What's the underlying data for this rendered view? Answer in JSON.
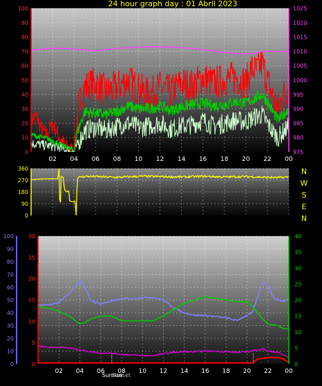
{
  "title": "24 hour graph day : 01 Abril 2023",
  "colors": {
    "background": "#000000",
    "title_yellow": "#ffff00",
    "wind_red": "#ff0000",
    "wind_green": "#00cc00",
    "wind_lightgreen": "#ccffcc",
    "pressure_magenta": "#ff44ff",
    "direction_yellow": "#ffff00",
    "humidity_blue": "#8080ff",
    "temp_green": "#00cc00",
    "dew_magenta": "#cc00cc",
    "rain_red": "#ff0000",
    "right_axis_green": "#00cc00",
    "left_axis_red": "#ff0000",
    "left_axis_blue": "#6666ff"
  },
  "x_ticks": [
    "02",
    "04",
    "06",
    "08",
    "10",
    "12",
    "14",
    "16",
    "18",
    "20",
    "22",
    "00"
  ],
  "wind_panel": {
    "type": "line",
    "left_axis": {
      "ticks": [
        "100",
        "90",
        "80",
        "70",
        "60",
        "50",
        "40",
        "30",
        "20",
        "10",
        "0"
      ],
      "range": [
        0,
        100
      ]
    },
    "right_axis": {
      "ticks": [
        "1025",
        "1020",
        "1015",
        "1010",
        "1005",
        "1000",
        "995",
        "990",
        "985",
        "980",
        "975"
      ],
      "range": [
        975,
        1025
      ]
    },
    "gust_profile": [
      [
        0,
        22
      ],
      [
        0.5,
        25
      ],
      [
        1,
        15
      ],
      [
        1.5,
        12
      ],
      [
        2,
        20
      ],
      [
        2.5,
        12
      ],
      [
        3,
        6
      ],
      [
        3.5,
        2
      ],
      [
        4,
        1
      ],
      [
        4.3,
        25
      ],
      [
        4.7,
        40
      ],
      [
        5,
        45
      ],
      [
        6,
        48
      ],
      [
        7,
        42
      ],
      [
        8,
        45
      ],
      [
        9,
        50
      ],
      [
        10,
        44
      ],
      [
        11,
        40
      ],
      [
        12,
        45
      ],
      [
        13,
        42
      ],
      [
        14,
        48
      ],
      [
        15,
        46
      ],
      [
        16,
        52
      ],
      [
        17,
        48
      ],
      [
        18,
        50
      ],
      [
        19,
        52
      ],
      [
        20,
        48
      ],
      [
        20.5,
        58
      ],
      [
        21,
        56
      ],
      [
        21.5,
        62
      ],
      [
        22,
        50
      ],
      [
        22.5,
        38
      ],
      [
        23,
        30
      ],
      [
        23.5,
        40
      ],
      [
        24,
        45
      ]
    ],
    "avg_profile": [
      [
        0,
        12
      ],
      [
        1,
        10
      ],
      [
        2,
        8
      ],
      [
        3,
        4
      ],
      [
        4,
        1
      ],
      [
        4.3,
        14
      ],
      [
        5,
        28
      ],
      [
        6,
        27
      ],
      [
        7,
        26
      ],
      [
        8,
        28
      ],
      [
        9,
        32
      ],
      [
        10,
        30
      ],
      [
        11,
        30
      ],
      [
        12,
        32
      ],
      [
        13,
        29
      ],
      [
        14,
        31
      ],
      [
        15,
        33
      ],
      [
        16,
        34
      ],
      [
        17,
        32
      ],
      [
        18,
        33
      ],
      [
        19,
        35
      ],
      [
        20,
        34
      ],
      [
        21,
        38
      ],
      [
        21.5,
        40
      ],
      [
        22,
        35
      ],
      [
        22.5,
        28
      ],
      [
        23,
        22
      ],
      [
        24,
        30
      ]
    ],
    "min_profile": [
      [
        0,
        6
      ],
      [
        1,
        5
      ],
      [
        2,
        4
      ],
      [
        3,
        2
      ],
      [
        4,
        0
      ],
      [
        4.3,
        5
      ],
      [
        5,
        15
      ],
      [
        6,
        17
      ],
      [
        7,
        15
      ],
      [
        8,
        18
      ],
      [
        9,
        20
      ],
      [
        10,
        17
      ],
      [
        11,
        18
      ],
      [
        12,
        20
      ],
      [
        13,
        16
      ],
      [
        14,
        18
      ],
      [
        15,
        19
      ],
      [
        16,
        22
      ],
      [
        17,
        18
      ],
      [
        18,
        20
      ],
      [
        19,
        22
      ],
      [
        20,
        21
      ],
      [
        21,
        25
      ],
      [
        21.5,
        26
      ],
      [
        22,
        20
      ],
      [
        22.5,
        14
      ],
      [
        23,
        10
      ],
      [
        24,
        18
      ]
    ],
    "pressure_profile": [
      [
        0,
        1010.5
      ],
      [
        1,
        1010.8
      ],
      [
        2,
        1011
      ],
      [
        3,
        1011
      ],
      [
        4,
        1010.8
      ],
      [
        5,
        1010.5
      ],
      [
        6,
        1010.2
      ],
      [
        7,
        1010.6
      ],
      [
        8,
        1011
      ],
      [
        9,
        1011.3
      ],
      [
        10,
        1011.5
      ],
      [
        11,
        1011.6
      ],
      [
        12,
        1011.6
      ],
      [
        13,
        1011.5
      ],
      [
        14,
        1011.3
      ],
      [
        15,
        1011
      ],
      [
        16,
        1010.6
      ],
      [
        17,
        1010.1
      ],
      [
        18,
        1009.6
      ],
      [
        19,
        1009.3
      ],
      [
        20,
        1009.1
      ],
      [
        20.5,
        1009.2
      ],
      [
        21,
        1009.5
      ],
      [
        21.5,
        1010
      ],
      [
        22,
        1010
      ],
      [
        23,
        1010
      ],
      [
        24,
        1009.9
      ]
    ]
  },
  "direction_panel": {
    "type": "line",
    "left_axis": {
      "ticks": [
        "360",
        "270",
        "180",
        "90",
        "0"
      ],
      "range": [
        0,
        360
      ]
    },
    "compass": [
      "N",
      "W",
      "S",
      "E",
      "N"
    ],
    "direction_profile": [
      [
        0,
        275
      ],
      [
        1,
        280
      ],
      [
        2,
        282
      ],
      [
        2.5,
        280
      ],
      [
        2.6,
        360
      ],
      [
        2.7,
        0
      ],
      [
        2.8,
        300
      ],
      [
        3.0,
        290
      ],
      [
        3.1,
        200
      ],
      [
        3.3,
        180
      ],
      [
        3.5,
        190
      ],
      [
        3.6,
        110
      ],
      [
        3.9,
        105
      ],
      [
        4.1,
        110
      ],
      [
        4.2,
        0
      ],
      [
        4.3,
        290
      ],
      [
        5,
        300
      ],
      [
        6,
        298
      ],
      [
        8,
        292
      ],
      [
        10,
        300
      ],
      [
        12,
        298
      ],
      [
        14,
        295
      ],
      [
        16,
        300
      ],
      [
        18,
        295
      ],
      [
        20,
        298
      ],
      [
        22,
        292
      ],
      [
        23,
        290
      ],
      [
        24,
        295
      ]
    ]
  },
  "temp_panel": {
    "type": "line",
    "left_axis_humidity": {
      "ticks": [
        "100",
        "90",
        "80",
        "70",
        "60",
        "50",
        "40",
        "30",
        "20",
        "10",
        "0"
      ],
      "range": [
        0,
        100
      ]
    },
    "left_axis_temp": {
      "ticks": [
        "30",
        "25",
        "20",
        "15",
        "10",
        "5",
        "0"
      ],
      "range": [
        0,
        30
      ]
    },
    "right_axis": {
      "ticks": [
        "40",
        "35",
        "30",
        "25",
        "20",
        "15",
        "10",
        "5",
        "0"
      ],
      "range": [
        0,
        40
      ]
    },
    "sun_labels": {
      "rise": "Sunrise",
      "set": "Sunset"
    },
    "humidity_profile": [
      [
        0,
        46
      ],
      [
        1,
        46
      ],
      [
        2,
        48
      ],
      [
        2.5,
        52
      ],
      [
        3,
        55
      ],
      [
        3.5,
        60
      ],
      [
        4,
        65
      ],
      [
        4.5,
        60
      ],
      [
        5,
        50
      ],
      [
        5.5,
        48
      ],
      [
        6,
        47
      ],
      [
        7,
        49
      ],
      [
        8,
        51
      ],
      [
        9,
        51
      ],
      [
        10,
        52
      ],
      [
        11,
        52
      ],
      [
        12,
        50
      ],
      [
        13,
        44
      ],
      [
        14,
        40
      ],
      [
        15,
        38
      ],
      [
        16,
        38
      ],
      [
        17,
        37
      ],
      [
        18,
        36
      ],
      [
        19,
        34
      ],
      [
        20,
        38
      ],
      [
        20.5,
        40
      ],
      [
        21,
        52
      ],
      [
        21.5,
        64
      ],
      [
        22,
        62
      ],
      [
        22.5,
        52
      ],
      [
        23,
        50
      ],
      [
        23.5,
        49
      ],
      [
        24,
        51
      ]
    ],
    "temp_profile": [
      [
        0,
        18
      ],
      [
        1,
        17.5
      ],
      [
        2,
        16.5
      ],
      [
        3,
        15
      ],
      [
        4,
        12.5
      ],
      [
        4.5,
        13
      ],
      [
        5,
        14
      ],
      [
        6,
        15
      ],
      [
        7,
        15
      ],
      [
        8,
        13.5
      ],
      [
        9,
        13.5
      ],
      [
        10,
        13.5
      ],
      [
        11,
        13.5
      ],
      [
        12,
        15
      ],
      [
        13,
        17
      ],
      [
        14,
        19
      ],
      [
        15,
        20
      ],
      [
        16,
        21
      ],
      [
        17,
        20.5
      ],
      [
        18,
        20
      ],
      [
        19,
        19.5
      ],
      [
        20,
        19.5
      ],
      [
        20.5,
        18
      ],
      [
        21,
        16
      ],
      [
        21.5,
        14
      ],
      [
        22,
        12.5
      ],
      [
        23,
        12
      ],
      [
        23.5,
        11
      ],
      [
        24,
        11
      ]
    ],
    "dew_profile": [
      [
        0,
        14
      ],
      [
        1,
        13
      ],
      [
        2,
        13
      ],
      [
        3,
        12.5
      ],
      [
        4,
        11
      ],
      [
        5,
        9.5
      ],
      [
        6,
        8.5
      ],
      [
        7,
        8.5
      ],
      [
        8,
        7.5
      ],
      [
        9,
        7
      ],
      [
        10,
        6.5
      ],
      [
        11,
        6.5
      ],
      [
        12,
        8
      ],
      [
        13,
        9
      ],
      [
        14,
        9.5
      ],
      [
        15,
        9.5
      ],
      [
        16,
        10
      ],
      [
        17,
        10
      ],
      [
        18,
        9.5
      ],
      [
        19,
        9
      ],
      [
        20,
        9.5
      ],
      [
        21,
        11
      ],
      [
        21.5,
        12
      ],
      [
        22,
        10
      ],
      [
        23,
        9
      ],
      [
        24,
        5
      ]
    ],
    "rain_profile": [
      [
        0,
        0.3
      ],
      [
        20.5,
        0.3
      ],
      [
        21,
        1.5
      ],
      [
        22,
        2
      ],
      [
        23,
        2
      ],
      [
        23.5,
        1.5
      ],
      [
        24,
        0.5
      ]
    ]
  }
}
